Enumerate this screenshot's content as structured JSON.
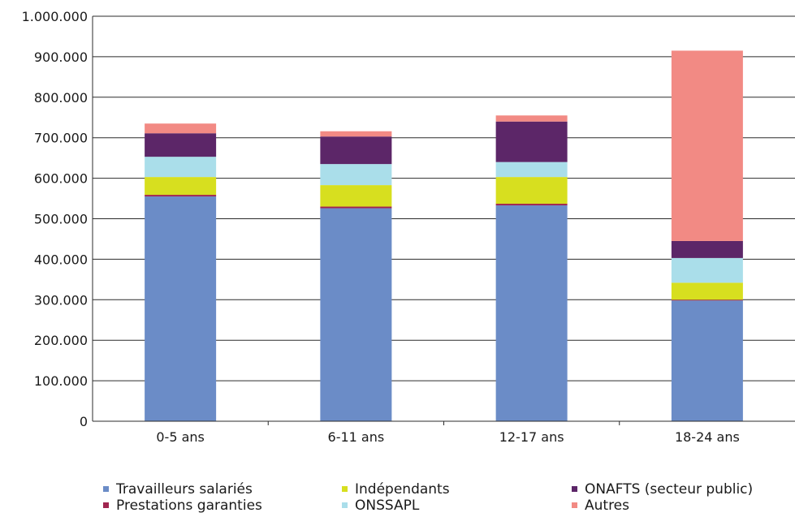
{
  "chart_data": {
    "type": "bar",
    "stacked": true,
    "title": "",
    "xlabel": "",
    "ylabel": "",
    "ylim": [
      0,
      1000000
    ],
    "y_ticks": [
      "0",
      "100.000",
      "200.000",
      "300.000",
      "400.000",
      "500.000",
      "600.000",
      "700.000",
      "800.000",
      "900.000",
      "1.000.000"
    ],
    "y_tick_values": [
      0,
      100000,
      200000,
      300000,
      400000,
      500000,
      600000,
      700000,
      800000,
      900000,
      1000000
    ],
    "grid": true,
    "legend_position": "bottom",
    "categories": [
      "0-5 ans",
      "6-11 ans",
      "12-17 ans",
      "18-24 ans"
    ],
    "series": [
      {
        "name": "Travailleurs salariés",
        "color": "#6b8cc7",
        "values": [
          555000,
          526000,
          533000,
          298000
        ]
      },
      {
        "name": "Prestations garanties",
        "color": "#a0254f",
        "values": [
          4000,
          4000,
          4000,
          2000
        ]
      },
      {
        "name": "Indépendants",
        "color": "#d7df1f",
        "values": [
          44000,
          53000,
          66000,
          42000
        ]
      },
      {
        "name": "ONSSAPL",
        "color": "#aadeea",
        "values": [
          50000,
          52000,
          37000,
          61000
        ]
      },
      {
        "name": "ONAFTS (secteur public)",
        "color": "#5c2668",
        "values": [
          58000,
          68000,
          100000,
          42000
        ]
      },
      {
        "name": "Autres",
        "color": "#f28a84",
        "values": [
          24000,
          13000,
          15000,
          470000
        ]
      }
    ]
  },
  "legend": {
    "items": [
      {
        "label": "Travailleurs salariés",
        "color": "#6b8cc7"
      },
      {
        "label": "Indépendants",
        "color": "#d7df1f"
      },
      {
        "label": "ONAFTS (secteur public)",
        "color": "#5c2668"
      },
      {
        "label": "Prestations garanties",
        "color": "#a0254f"
      },
      {
        "label": "ONSSAPL",
        "color": "#aadeea"
      },
      {
        "label": "Autres",
        "color": "#f28a84"
      }
    ]
  }
}
